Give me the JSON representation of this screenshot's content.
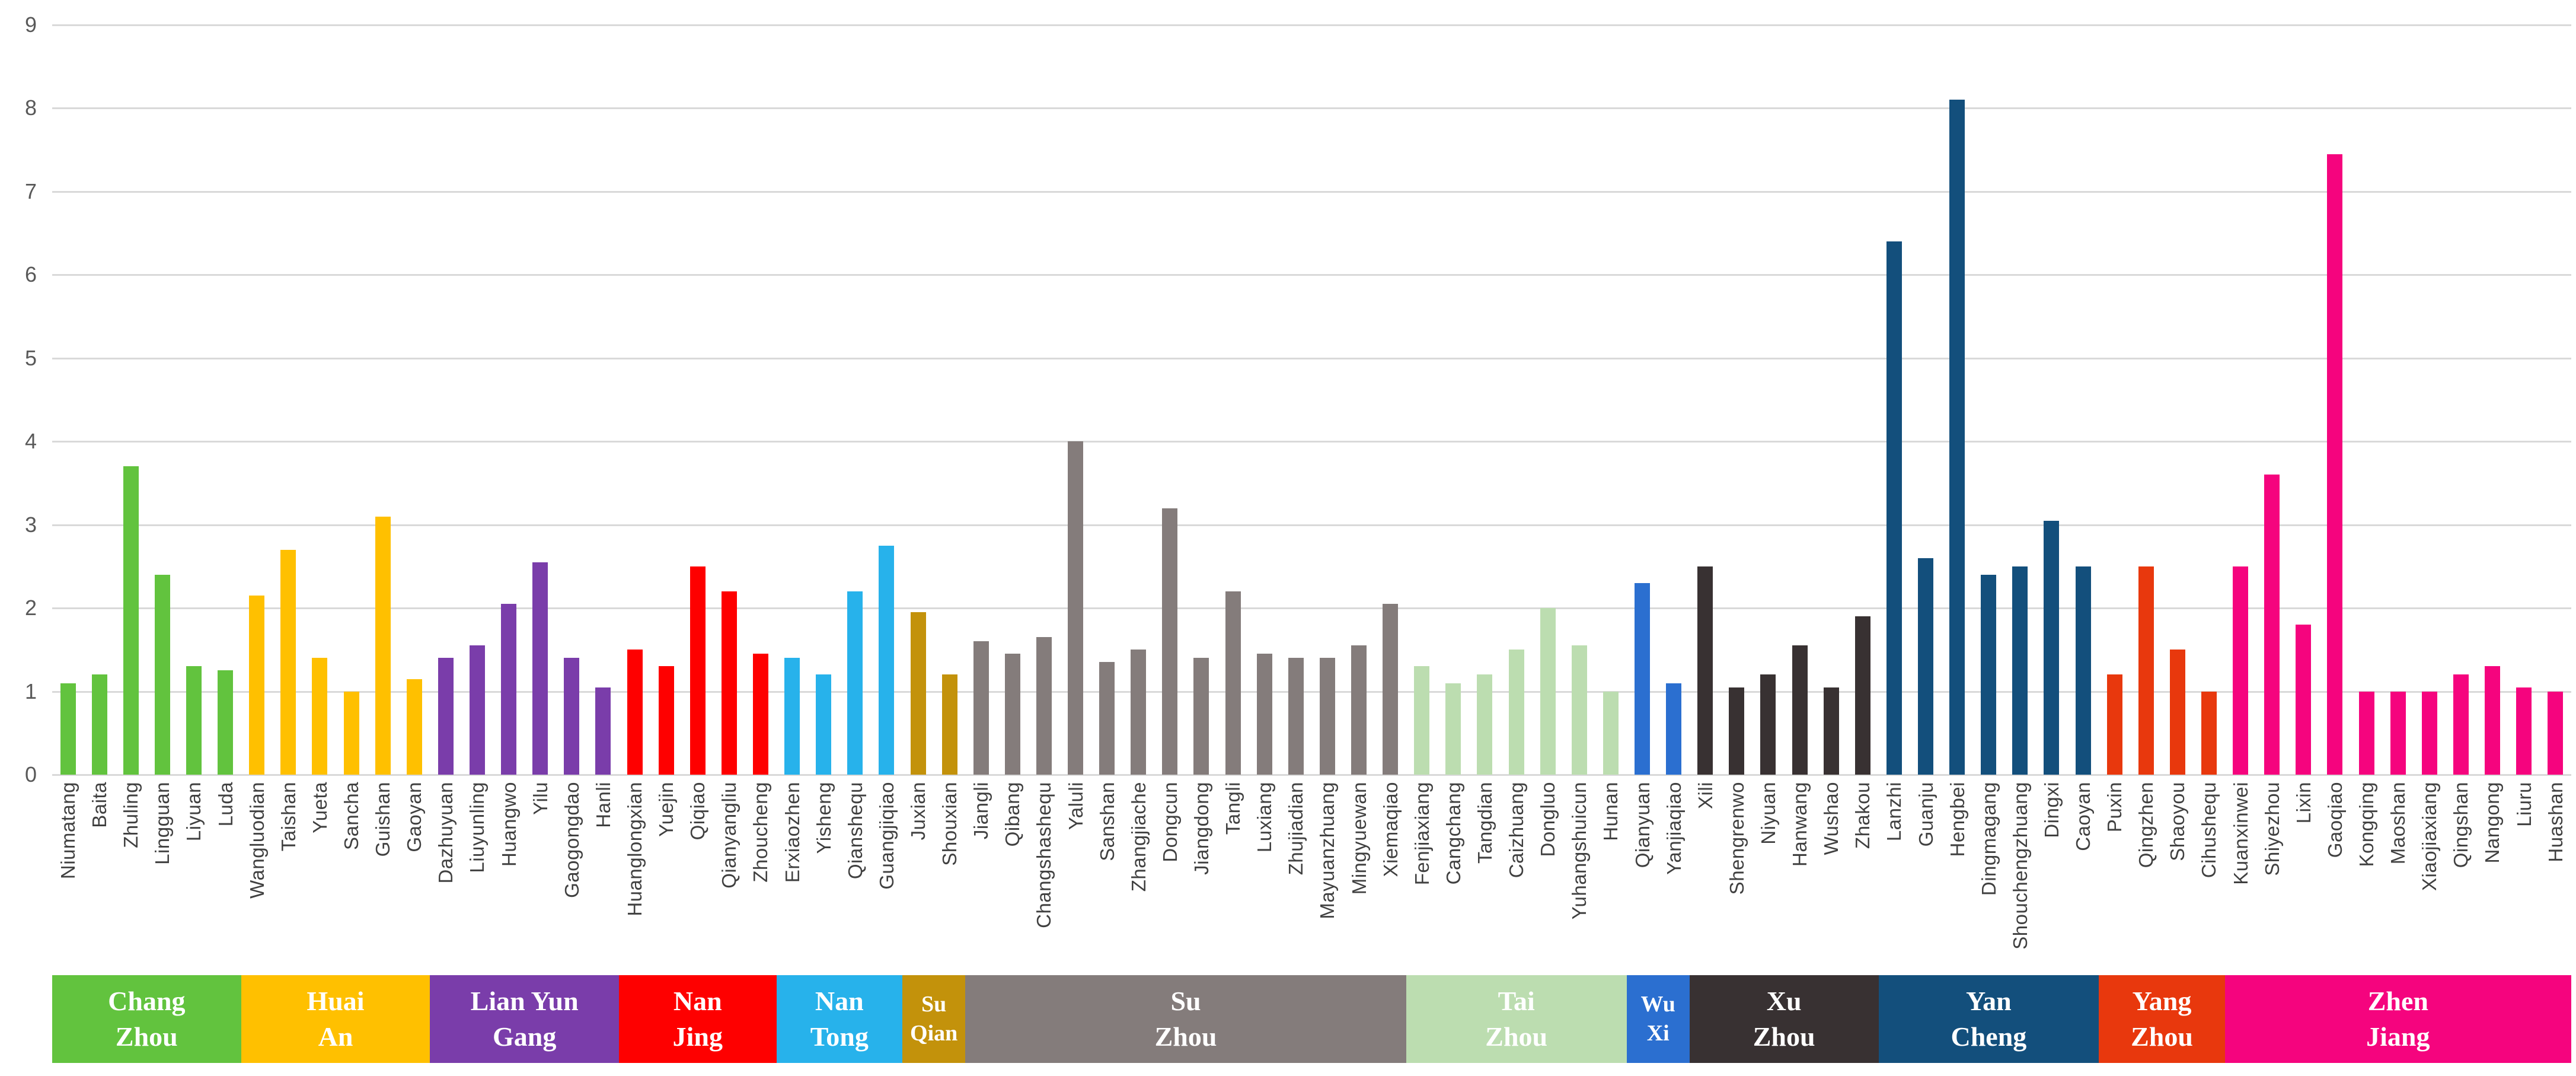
{
  "colors": {
    "gridline": "#d9d9d9",
    "axis_tick_text": "#595959",
    "x_label_text": "#404040",
    "band_text": "#ffffff"
  },
  "chart_data": {
    "type": "bar",
    "title": "",
    "xlabel": "",
    "ylabel": "",
    "ylim": [
      0,
      9
    ],
    "yticks": [
      0,
      1,
      2,
      3,
      4,
      5,
      6,
      7,
      8,
      9
    ],
    "grid": true,
    "legend_position": "bottom-band",
    "groups": [
      {
        "city": "Chang Zhou",
        "label_lines": [
          "Chang",
          "Zhou"
        ],
        "color": "#62C33E",
        "items": [
          {
            "name": "Niumatang",
            "value": 1.1
          },
          {
            "name": "Baita",
            "value": 1.2
          },
          {
            "name": "Zhuling",
            "value": 3.7
          },
          {
            "name": "Lingguan",
            "value": 2.4
          },
          {
            "name": "Liyuan",
            "value": 1.3
          },
          {
            "name": "Luda",
            "value": 1.25
          }
        ]
      },
      {
        "city": "Huai An",
        "label_lines": [
          "Huai",
          "An"
        ],
        "color": "#FFC000",
        "items": [
          {
            "name": "Wangluodian",
            "value": 2.15
          },
          {
            "name": "Taishan",
            "value": 2.7
          },
          {
            "name": "Yueta",
            "value": 1.4
          },
          {
            "name": "Sancha",
            "value": 1.0
          },
          {
            "name": "Guishan",
            "value": 3.1
          },
          {
            "name": "Gaoyan",
            "value": 1.15
          }
        ]
      },
      {
        "city": "Lian Yun Gang",
        "label_lines": [
          "Lian Yun",
          "Gang"
        ],
        "color": "#7A3DAA",
        "items": [
          {
            "name": "Dazhuyuan",
            "value": 1.4
          },
          {
            "name": "Liuyunling",
            "value": 1.55
          },
          {
            "name": "Huangwo",
            "value": 2.05
          },
          {
            "name": "Yilu",
            "value": 2.55
          },
          {
            "name": "Gaogongdao",
            "value": 1.4
          },
          {
            "name": "Hanli",
            "value": 1.05
          }
        ]
      },
      {
        "city": "Nan Jing",
        "label_lines": [
          "Nan",
          "Jing"
        ],
        "color": "#FE0000",
        "items": [
          {
            "name": "Huanglongxian",
            "value": 1.5
          },
          {
            "name": "Yuejin",
            "value": 1.3
          },
          {
            "name": "Qiqiao",
            "value": 2.5
          },
          {
            "name": "Qianyangliu",
            "value": 2.2
          },
          {
            "name": "Zhoucheng",
            "value": 1.45
          }
        ]
      },
      {
        "city": "Nan Tong",
        "label_lines": [
          "Nan",
          "Tong"
        ],
        "color": "#27B2EB",
        "items": [
          {
            "name": "Erxiaozhen",
            "value": 1.4
          },
          {
            "name": "Yisheng",
            "value": 1.2
          },
          {
            "name": "Qianshequ",
            "value": 2.2
          },
          {
            "name": "Guangjiqiao",
            "value": 2.75
          }
        ]
      },
      {
        "city": "Su Qian",
        "label_lines": [
          "Su",
          "Qian"
        ],
        "color": "#C3920B",
        "items": [
          {
            "name": "Juxian",
            "value": 1.95
          },
          {
            "name": "Shouxian",
            "value": 1.2
          }
        ]
      },
      {
        "city": "Su Zhou",
        "label_lines": [
          "Su",
          "Zhou"
        ],
        "color": "#847C7B",
        "items": [
          {
            "name": "Jiangli",
            "value": 1.6
          },
          {
            "name": "Qibang",
            "value": 1.45
          },
          {
            "name": "Changshashequ",
            "value": 1.65
          },
          {
            "name": "Yaluli",
            "value": 4.0
          },
          {
            "name": "Sanshan",
            "value": 1.35
          },
          {
            "name": "Zhangjiache",
            "value": 1.5
          },
          {
            "name": "Dongcun",
            "value": 3.2
          },
          {
            "name": "Jiangdong",
            "value": 1.4
          },
          {
            "name": "Tangli",
            "value": 2.2
          },
          {
            "name": "Luxiang",
            "value": 1.45
          },
          {
            "name": "Zhujiadian",
            "value": 1.4
          },
          {
            "name": "Mayuanzhuang",
            "value": 1.4
          },
          {
            "name": "Mingyuewan",
            "value": 1.55
          },
          {
            "name": "Xiemaqiao",
            "value": 2.05
          }
        ]
      },
      {
        "city": "Tai Zhou",
        "label_lines": [
          "Tai",
          "Zhou"
        ],
        "color": "#BCDDB0",
        "items": [
          {
            "name": "Fenjiaxiang",
            "value": 1.3
          },
          {
            "name": "Cangchang",
            "value": 1.1
          },
          {
            "name": "Tangdian",
            "value": 1.2
          },
          {
            "name": "Caizhuang",
            "value": 1.5
          },
          {
            "name": "Dongluo",
            "value": 2.0
          },
          {
            "name": "Yuhangshuicun",
            "value": 1.55
          },
          {
            "name": "Hunan",
            "value": 1.0
          }
        ]
      },
      {
        "city": "Wu Xi",
        "label_lines": [
          "Wu",
          "Xi"
        ],
        "color": "#2B6FD0",
        "items": [
          {
            "name": "Qianyuan",
            "value": 2.3
          },
          {
            "name": "Yanjiaqiao",
            "value": 1.1
          }
        ]
      },
      {
        "city": "Xu Zhou",
        "label_lines": [
          "Xu",
          "Zhou"
        ],
        "color": "#383132",
        "items": [
          {
            "name": "Xili",
            "value": 2.5
          },
          {
            "name": "Shengrenwo",
            "value": 1.05
          },
          {
            "name": "Niyuan",
            "value": 1.2
          },
          {
            "name": "Hanwang",
            "value": 1.55
          },
          {
            "name": "Wushao",
            "value": 1.05
          },
          {
            "name": "Zhakou",
            "value": 1.9
          }
        ]
      },
      {
        "city": "Yan Cheng",
        "label_lines": [
          "Yan",
          "Cheng"
        ],
        "color": "#134F7C",
        "items": [
          {
            "name": "Lanzhi",
            "value": 6.4
          },
          {
            "name": "Guanju",
            "value": 2.6
          },
          {
            "name": "Hengbei",
            "value": 8.1
          },
          {
            "name": "Dingmagang",
            "value": 2.4
          },
          {
            "name": "Shouchengzhuang",
            "value": 2.5
          },
          {
            "name": "Dingxi",
            "value": 3.05
          },
          {
            "name": "Caoyan",
            "value": 2.5
          }
        ]
      },
      {
        "city": "Yang Zhou",
        "label_lines": [
          "Yang",
          "Zhou"
        ],
        "color": "#E8380D",
        "items": [
          {
            "name": "Puxin",
            "value": 1.2
          },
          {
            "name": "Qingzhen",
            "value": 2.5
          },
          {
            "name": "Shaoyou",
            "value": 1.5
          },
          {
            "name": "Cihushequ",
            "value": 1.0
          }
        ]
      },
      {
        "city": "Zhen Jiang",
        "label_lines": [
          "Zhen",
          "Jiang"
        ],
        "color": "#F5047E",
        "items": [
          {
            "name": "Kuanxinwei",
            "value": 2.5
          },
          {
            "name": "Shiyezhou",
            "value": 3.6
          },
          {
            "name": "Lixin",
            "value": 1.8
          },
          {
            "name": "Gaoqiao",
            "value": 7.45
          },
          {
            "name": "Kongqing",
            "value": 1.0
          },
          {
            "name": "Maoshan",
            "value": 1.0
          },
          {
            "name": "Xiaojiaxiang",
            "value": 1.0
          },
          {
            "name": "Qingshan",
            "value": 1.2
          },
          {
            "name": "Nangong",
            "value": 1.3
          },
          {
            "name": "Liuru",
            "value": 1.05
          },
          {
            "name": "Huashan",
            "value": 1.0
          }
        ]
      }
    ]
  }
}
